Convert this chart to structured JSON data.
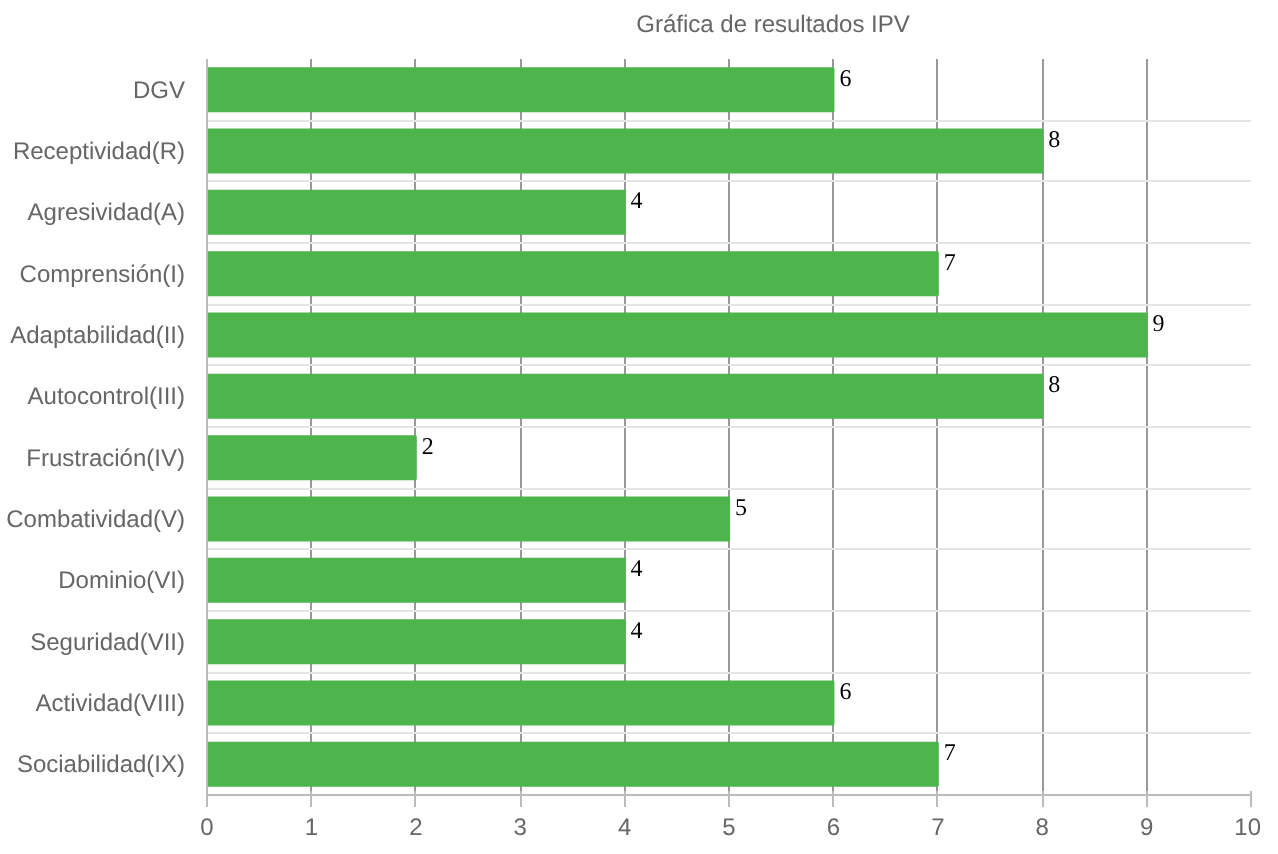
{
  "chart_data": {
    "type": "bar",
    "orientation": "horizontal",
    "categories": [
      "DGV",
      "Receptividad(R)",
      "Agresividad(A)",
      "Comprensión(I)",
      "Adaptabilidad(II)",
      "Autocontrol(III)",
      "Frustración(IV)",
      "Combatividad(V)",
      "Dominio(VI)",
      "Seguridad(VII)",
      "Actividad(VIII)",
      "Sociabilidad(IX)"
    ],
    "series": [
      {
        "name": "Gráfica de resultados IPV",
        "color": "#4cb54c",
        "values": [
          6,
          8,
          4,
          7,
          9,
          8,
          2,
          5,
          4,
          4,
          6,
          7
        ]
      }
    ],
    "xlim": [
      0,
      10
    ],
    "xticks": [
      0,
      1,
      2,
      3,
      4,
      5,
      6,
      7,
      8,
      9,
      10
    ],
    "grid": true,
    "legend": "top",
    "data_labels": true
  }
}
